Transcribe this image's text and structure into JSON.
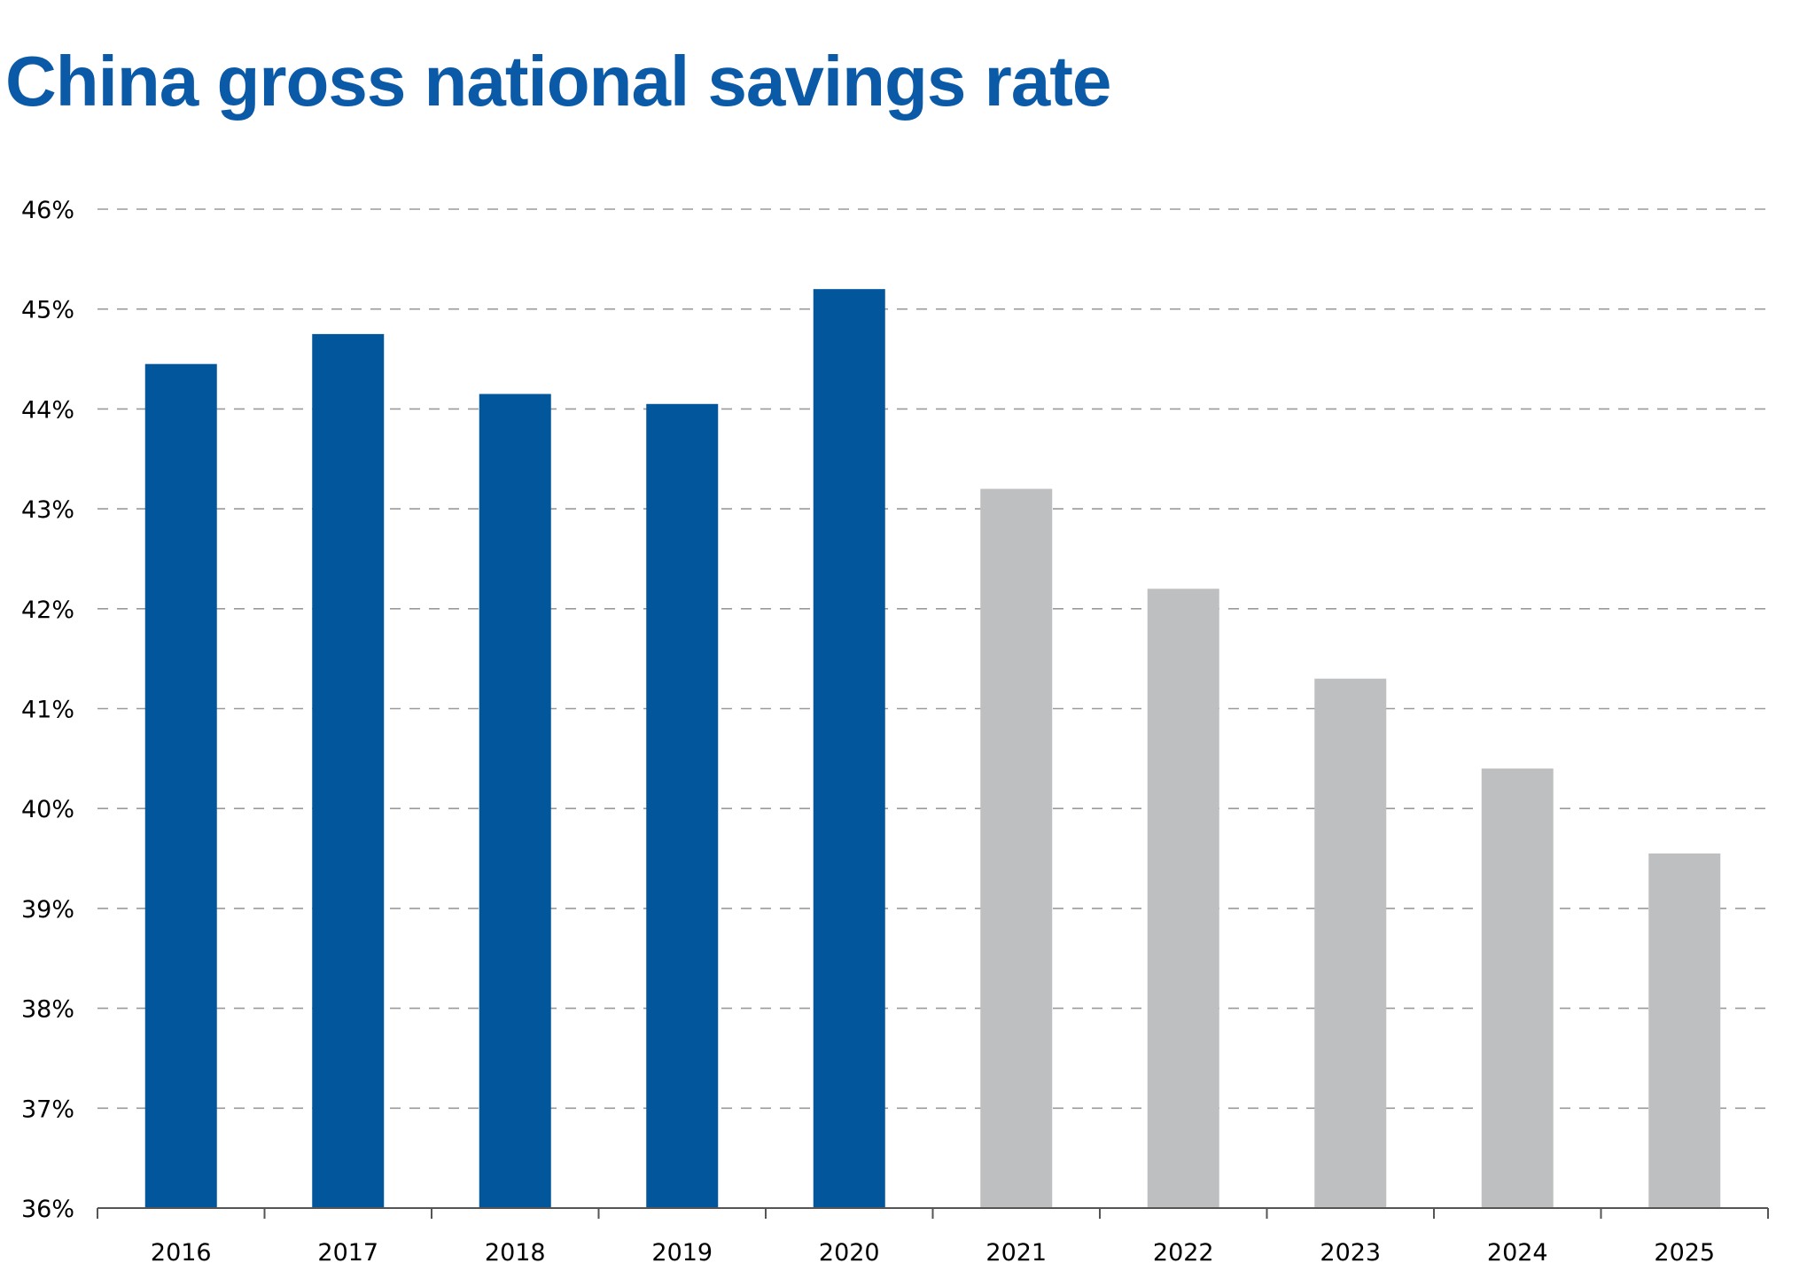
{
  "chart_data": {
    "type": "bar",
    "title": "China gross national savings rate",
    "xlabel": "",
    "ylabel": "",
    "ylim": [
      36,
      46
    ],
    "yticks": [
      "36%",
      "37%",
      "38%",
      "39%",
      "40%",
      "41%",
      "42%",
      "43%",
      "44%",
      "45%",
      "46%"
    ],
    "categories": [
      "2016",
      "2017",
      "2018",
      "2019",
      "2020",
      "2021",
      "2022",
      "2023",
      "2024",
      "2025"
    ],
    "values": [
      44.45,
      44.75,
      44.15,
      44.05,
      45.2,
      43.2,
      42.2,
      41.3,
      40.4,
      39.55
    ],
    "bar_colors": [
      "#02579C",
      "#02579C",
      "#02579C",
      "#02579C",
      "#02579C",
      "#BEBFC1",
      "#BEBFC1",
      "#BEBFC1",
      "#BEBFC1",
      "#BEBFC1"
    ],
    "grid": true,
    "grid_style": "dashed",
    "legend": "none"
  },
  "colors": {
    "title": "#0B5AA8",
    "actual": "#02579C",
    "forecast": "#BEBFC1",
    "grid": "#9a9a9a",
    "axis": "#555555"
  }
}
